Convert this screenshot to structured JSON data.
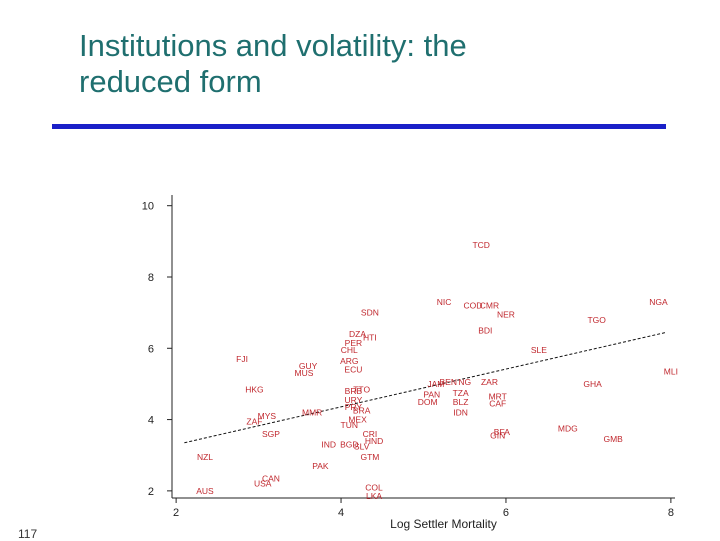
{
  "slide": {
    "title_line1": "Institutions and volatility: the",
    "title_line2": "reduced form",
    "page_number": "117"
  },
  "colors": {
    "title": "#1f6f6f",
    "rule": "#1a20c8",
    "point_label": "#c0282e",
    "axis": "#222222"
  },
  "chart_data": {
    "type": "scatter",
    "xlabel": "Log Settler Mortality",
    "ylabel": "",
    "xlim": [
      1.95,
      8.05
    ],
    "ylim": [
      1.8,
      10.3
    ],
    "xticks": [
      2,
      4,
      6,
      8
    ],
    "yticks": [
      2,
      4,
      6,
      8,
      10
    ],
    "xtick_labels": [
      "2",
      "4",
      "6",
      "8"
    ],
    "ytick_labels": [
      "2",
      "4",
      "6",
      "8",
      "10"
    ],
    "fit_line": {
      "style": "dashed",
      "x": [
        2.1,
        7.95
      ],
      "y": [
        3.35,
        6.45
      ]
    },
    "points": [
      {
        "label": "TCD",
        "x": 5.7,
        "y": 8.9
      },
      {
        "label": "NIC",
        "x": 5.25,
        "y": 7.3
      },
      {
        "label": "COD",
        "x": 5.6,
        "y": 7.2
      },
      {
        "label": "CMR",
        "x": 5.8,
        "y": 7.2
      },
      {
        "label": "NGA",
        "x": 7.85,
        "y": 7.3
      },
      {
        "label": "SDN",
        "x": 4.35,
        "y": 7.0
      },
      {
        "label": "NER",
        "x": 6.0,
        "y": 6.95
      },
      {
        "label": "TGO",
        "x": 7.1,
        "y": 6.8
      },
      {
        "label": "BDI",
        "x": 5.75,
        "y": 6.5
      },
      {
        "label": "DZA",
        "x": 4.2,
        "y": 6.4
      },
      {
        "label": "HTI",
        "x": 4.35,
        "y": 6.3
      },
      {
        "label": "PER",
        "x": 4.15,
        "y": 6.15
      },
      {
        "label": "CHL",
        "x": 4.1,
        "y": 5.95
      },
      {
        "label": "SLE",
        "x": 6.4,
        "y": 5.95
      },
      {
        "label": "FJI",
        "x": 2.8,
        "y": 5.7
      },
      {
        "label": "ARG",
        "x": 4.1,
        "y": 5.65
      },
      {
        "label": "GUY",
        "x": 3.6,
        "y": 5.5
      },
      {
        "label": "ECU",
        "x": 4.15,
        "y": 5.4
      },
      {
        "label": "MUS",
        "x": 3.55,
        "y": 5.3
      },
      {
        "label": "MLI",
        "x": 8.0,
        "y": 5.35
      },
      {
        "label": "JAM",
        "x": 5.15,
        "y": 5.0
      },
      {
        "label": "BEN",
        "x": 5.3,
        "y": 5.05
      },
      {
        "label": "NG",
        "x": 5.5,
        "y": 5.05
      },
      {
        "label": "ZAR",
        "x": 5.8,
        "y": 5.05
      },
      {
        "label": "GHA",
        "x": 7.05,
        "y": 5.0
      },
      {
        "label": "HKG",
        "x": 2.95,
        "y": 4.85
      },
      {
        "label": "BRB",
        "x": 4.15,
        "y": 4.8
      },
      {
        "label": "TTO",
        "x": 4.25,
        "y": 4.85
      },
      {
        "label": "URY",
        "x": 4.15,
        "y": 4.55
      },
      {
        "label": "PAN",
        "x": 5.1,
        "y": 4.7
      },
      {
        "label": "TZA",
        "x": 5.45,
        "y": 4.75
      },
      {
        "label": "MRT",
        "x": 5.9,
        "y": 4.65
      },
      {
        "label": "DOM",
        "x": 5.05,
        "y": 4.5
      },
      {
        "label": "BLZ",
        "x": 5.45,
        "y": 4.5
      },
      {
        "label": "CAF",
        "x": 5.9,
        "y": 4.45
      },
      {
        "label": "PRY",
        "x": 4.15,
        "y": 4.35
      },
      {
        "label": "BRA",
        "x": 4.25,
        "y": 4.25
      },
      {
        "label": "IDN",
        "x": 5.45,
        "y": 4.2
      },
      {
        "label": "MMR",
        "x": 3.65,
        "y": 4.2
      },
      {
        "label": "MYS",
        "x": 3.1,
        "y": 4.1
      },
      {
        "label": "ZAF",
        "x": 2.95,
        "y": 3.95
      },
      {
        "label": "MEX",
        "x": 4.2,
        "y": 4.0
      },
      {
        "label": "TUN",
        "x": 4.1,
        "y": 3.85
      },
      {
        "label": "MDG",
        "x": 6.75,
        "y": 3.75
      },
      {
        "label": "SGP",
        "x": 3.15,
        "y": 3.6
      },
      {
        "label": "CRI",
        "x": 4.35,
        "y": 3.6
      },
      {
        "label": "BFA",
        "x": 5.95,
        "y": 3.65
      },
      {
        "label": "GIN",
        "x": 5.9,
        "y": 3.55
      },
      {
        "label": "GMB",
        "x": 7.3,
        "y": 3.45
      },
      {
        "label": "IND",
        "x": 3.85,
        "y": 3.3
      },
      {
        "label": "BGD",
        "x": 4.1,
        "y": 3.3
      },
      {
        "label": "SLV",
        "x": 4.25,
        "y": 3.25
      },
      {
        "label": "HND",
        "x": 4.4,
        "y": 3.4
      },
      {
        "label": "NZL",
        "x": 2.35,
        "y": 2.95
      },
      {
        "label": "GTM",
        "x": 4.35,
        "y": 2.95
      },
      {
        "label": "PAK",
        "x": 3.75,
        "y": 2.7
      },
      {
        "label": "CAN",
        "x": 3.15,
        "y": 2.35
      },
      {
        "label": "USA",
        "x": 3.05,
        "y": 2.2
      },
      {
        "label": "AUS",
        "x": 2.35,
        "y": 2.0
      },
      {
        "label": "COL",
        "x": 4.4,
        "y": 2.1
      },
      {
        "label": "LKA",
        "x": 4.4,
        "y": 1.85
      }
    ]
  }
}
